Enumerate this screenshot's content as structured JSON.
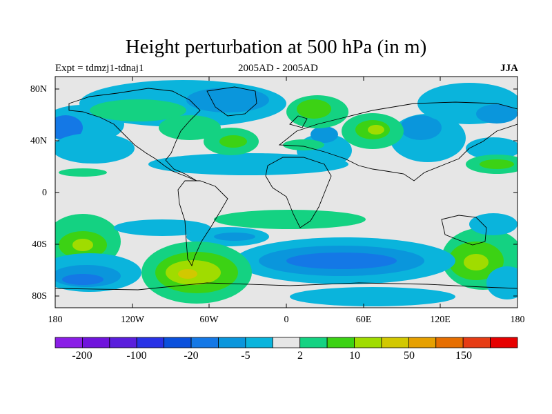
{
  "title": "Height perturbation at 500 hPa (in m)",
  "left_label": "Expt = tdmzj1-tdnaj1",
  "center_label": "2005AD - 2005AD",
  "right_label": "JJA",
  "lat_ticks": [
    "80N",
    "40N",
    "0",
    "40S",
    "80S"
  ],
  "lon_ticks": [
    "180",
    "120W",
    "60W",
    "0",
    "60E",
    "120E",
    "180"
  ],
  "colorbar": {
    "labels": [
      "-200",
      "-100",
      "-20",
      "-5",
      "2",
      "10",
      "50",
      "150"
    ],
    "colors": [
      "#8a1ee6",
      "#7014dc",
      "#5a1edc",
      "#2832e6",
      "#0a50dc",
      "#1478e6",
      "#0a96dc",
      "#0ab4dc",
      "#e6e6e6",
      "#14d282",
      "#3cd214",
      "#a0dc00",
      "#d2c800",
      "#e6a000",
      "#e66e00",
      "#e63c14",
      "#e60000"
    ]
  },
  "map": {
    "background_color": "#e6e6e6",
    "lat_range": [
      -90,
      90
    ],
    "lon_range": [
      -180,
      180
    ]
  }
}
